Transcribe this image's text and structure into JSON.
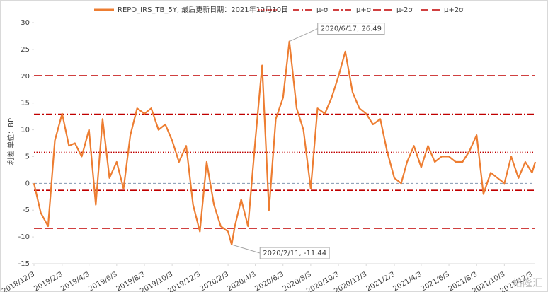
{
  "chart_data": {
    "type": "line",
    "y_label": "利差 单位：BP",
    "series": [
      {
        "name": "REPO_IRS_TB_5Y, 最后更新日期：2021年12月10日",
        "color": "#ed7d31",
        "x": [
          "2018/12/3",
          "2018/12/18",
          "2019/1/3",
          "2019/1/18",
          "2019/2/3",
          "2019/2/18",
          "2019/3/3",
          "2019/3/18",
          "2019/4/3",
          "2019/4/18",
          "2019/5/3",
          "2019/5/18",
          "2019/6/3",
          "2019/6/18",
          "2019/7/3",
          "2019/7/18",
          "2019/8/3",
          "2019/8/18",
          "2019/9/3",
          "2019/9/18",
          "2019/10/3",
          "2019/10/18",
          "2019/11/3",
          "2019/11/18",
          "2019/12/3",
          "2019/12/18",
          "2020/1/3",
          "2020/1/18",
          "2020/2/3",
          "2020/2/11",
          "2020/2/18",
          "2020/3/3",
          "2020/3/18",
          "2020/4/3",
          "2020/4/18",
          "2020/5/3",
          "2020/5/18",
          "2020/6/3",
          "2020/6/17",
          "2020/7/3",
          "2020/7/18",
          "2020/8/3",
          "2020/8/18",
          "2020/9/3",
          "2020/9/18",
          "2020/10/3",
          "2020/10/18",
          "2020/11/3",
          "2020/11/18",
          "2020/12/3",
          "2020/12/18",
          "2021/1/3",
          "2021/1/18",
          "2021/2/3",
          "2021/2/18",
          "2021/3/3",
          "2021/3/18",
          "2021/4/3",
          "2021/4/18",
          "2021/5/3",
          "2021/5/18",
          "2021/6/3",
          "2021/6/18",
          "2021/7/3",
          "2021/7/18",
          "2021/8/3",
          "2021/8/18",
          "2021/9/3",
          "2021/9/18",
          "2021/10/3",
          "2021/10/18",
          "2021/11/3",
          "2021/11/18",
          "2021/12/3",
          "2021/12/10"
        ],
        "values": [
          0,
          -5.5,
          -8,
          8,
          13,
          7,
          7.5,
          5,
          10,
          -4,
          12,
          1,
          4,
          -1,
          9,
          14,
          13,
          14,
          10,
          11,
          8,
          4,
          7,
          -4,
          -9,
          4,
          -4,
          -8,
          -9,
          -11.44,
          -8,
          -3,
          -8,
          8,
          22,
          -5,
          12,
          16,
          26.49,
          14,
          10,
          -1,
          14,
          13,
          16,
          20,
          24.6,
          17,
          14,
          13,
          11,
          12,
          6,
          1,
          0,
          4,
          7,
          3,
          7,
          4,
          5,
          5,
          4,
          4,
          6,
          9,
          -2,
          2,
          1,
          0,
          5,
          1,
          4,
          2,
          4
        ]
      }
    ],
    "reference_lines": [
      {
        "name": "μ",
        "value": 5.8,
        "color": "#c00000",
        "style": "dotted"
      },
      {
        "name": "μ-σ",
        "value": -1.3,
        "color": "#c00000",
        "style": "dashdot"
      },
      {
        "name": "μ+σ",
        "value": 12.9,
        "color": "#c00000",
        "style": "dashdot"
      },
      {
        "name": "μ-2σ",
        "value": -8.4,
        "color": "#c00000",
        "style": "dashed"
      },
      {
        "name": "μ+2σ",
        "value": 20.1,
        "color": "#c00000",
        "style": "dashed"
      }
    ],
    "annotations": [
      {
        "label": "2020/6/17, 26.49",
        "x": "2020/6/17",
        "y": 26.49,
        "color": "#c00000"
      },
      {
        "label": "2020/2/11, -11.44",
        "x": "2020/2/11",
        "y": -11.44,
        "color": "#548235"
      }
    ],
    "xlim": [
      "2018/12/3",
      "2021/12/10"
    ],
    "xticks": [
      "2018/12/3",
      "2019/2/3",
      "2019/4/3",
      "2019/6/3",
      "2019/8/3",
      "2019/10/3",
      "2019/12/3",
      "2020/2/3",
      "2020/4/3",
      "2020/6/3",
      "2020/8/3",
      "2020/10/3",
      "2020/12/3",
      "2021/2/3",
      "2021/4/3",
      "2021/6/3",
      "2021/8/3",
      "2021/10/3",
      "2021/12/3"
    ],
    "ylim": [
      -15,
      30
    ],
    "yticks": [
      -15,
      -10,
      -5,
      0,
      5,
      10,
      15,
      20,
      25,
      30
    ],
    "watermark": "格隆汇"
  }
}
